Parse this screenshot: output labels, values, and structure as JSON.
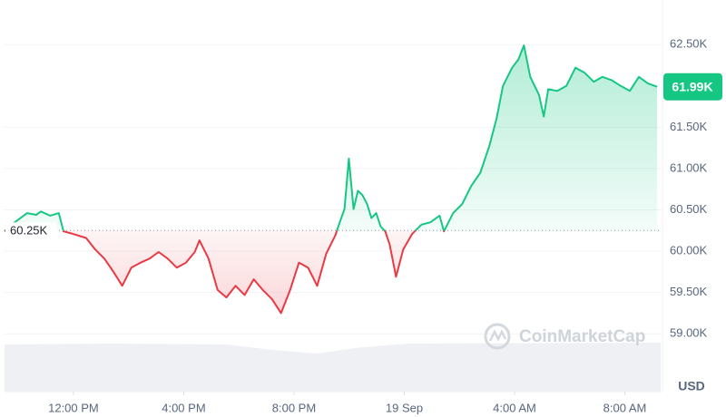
{
  "chart_data": {
    "type": "line",
    "x": [
      9.5,
      9.67,
      10.32,
      10.65,
      10.82,
      11.15,
      11.47,
      11.64,
      11.97,
      12.46,
      12.79,
      13.12,
      13.45,
      13.77,
      14.1,
      14.43,
      14.76,
      15.09,
      15.42,
      15.75,
      16.08,
      16.4,
      16.57,
      16.9,
      17.23,
      17.55,
      17.88,
      18.21,
      18.54,
      18.87,
      19.2,
      19.53,
      19.86,
      20.18,
      20.51,
      20.84,
      21.17,
      21.5,
      21.66,
      21.83,
      21.99,
      22.16,
      22.32,
      22.48,
      22.65,
      22.81,
      22.98,
      23.14,
      23.31,
      23.47,
      23.7,
      23.96,
      24.29,
      24.62,
      24.95,
      25.28,
      25.44,
      25.77,
      26.1,
      26.43,
      26.76,
      27.09,
      27.35,
      27.58,
      27.91,
      28.14,
      28.34,
      28.57,
      28.89,
      29.06,
      29.22,
      29.55,
      29.88,
      30.21,
      30.54,
      30.87,
      31.19,
      31.52,
      31.85,
      32.18,
      32.51,
      32.84,
      33.17
    ],
    "values": [
      60240,
      60300,
      60460,
      60440,
      60480,
      60430,
      60460,
      60240,
      60210,
      60160,
      60020,
      59910,
      59750,
      59580,
      59800,
      59860,
      59910,
      59990,
      59910,
      59800,
      59860,
      59990,
      60130,
      59910,
      59530,
      59440,
      59580,
      59470,
      59660,
      59530,
      59420,
      59250,
      59530,
      59860,
      59800,
      59580,
      59970,
      60190,
      60350,
      60510,
      61120,
      60510,
      60730,
      60680,
      60570,
      60400,
      60460,
      60300,
      60240,
      60080,
      59690,
      60020,
      60210,
      60320,
      60350,
      60430,
      60240,
      60460,
      60570,
      60790,
      60950,
      61280,
      61610,
      62000,
      62220,
      62320,
      62490,
      62110,
      61890,
      61630,
      61960,
      61940,
      62000,
      62220,
      62160,
      62050,
      62110,
      62070,
      62000,
      61940,
      62110,
      62030,
      61990
    ],
    "color_up": "#16c784",
    "color_down": "#ea3943",
    "baseline": {
      "value": 60250,
      "label": "60.25K"
    },
    "current_price": {
      "value": 61990,
      "label": "61.99K"
    },
    "xlim": [
      9.5,
      33.3
    ],
    "xticks": [
      {
        "value": 12,
        "label": "12:00 PM"
      },
      {
        "value": 16,
        "label": "4:00 PM"
      },
      {
        "value": 20,
        "label": "8:00 PM"
      },
      {
        "value": 24,
        "label": "19 Sep"
      },
      {
        "value": 28,
        "label": "4:00 AM"
      },
      {
        "value": 32,
        "label": "8:00 AM"
      }
    ],
    "ylim": [
      58300,
      63040
    ],
    "yticks": [
      {
        "value": 59000,
        "label": "59.00K"
      },
      {
        "value": 59500,
        "label": "59.50K"
      },
      {
        "value": 60000,
        "label": "60.00K"
      },
      {
        "value": 60500,
        "label": "60.50K"
      },
      {
        "value": 61000,
        "label": "61.00K"
      },
      {
        "value": 61500,
        "label": "61.50K"
      },
      {
        "value": 62500,
        "label": "62.50K"
      }
    ],
    "y_axis_unit": "USD",
    "watermark": "CoinMarketCap",
    "grid": true
  }
}
